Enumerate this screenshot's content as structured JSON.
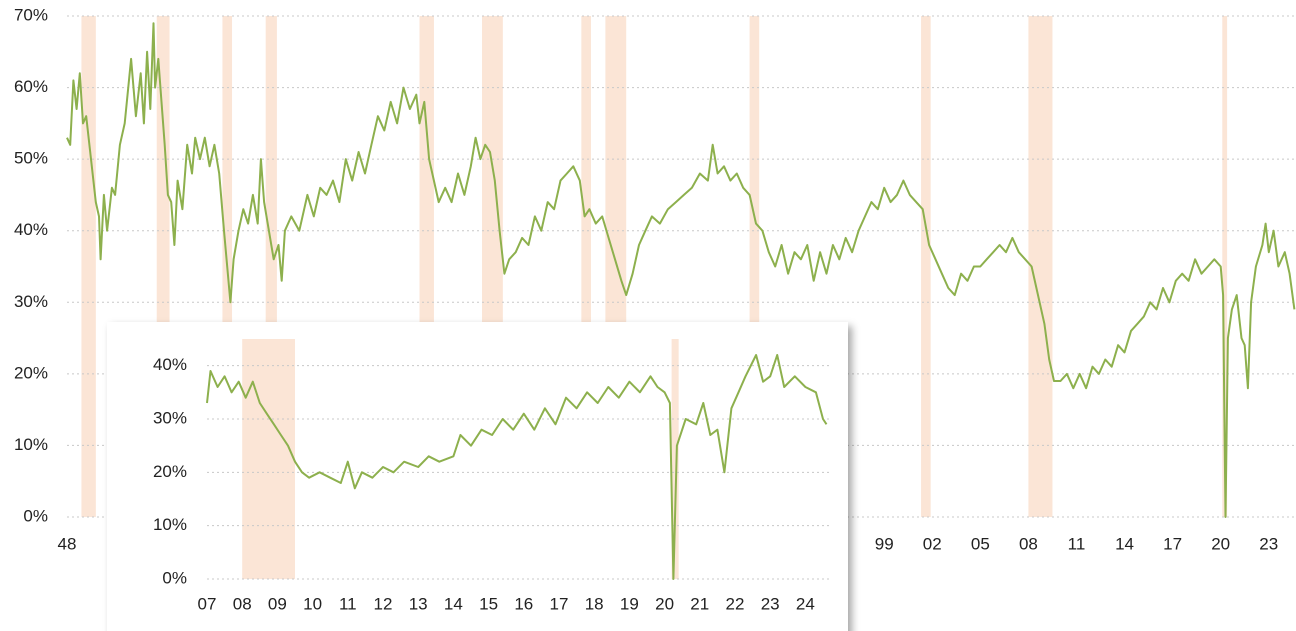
{
  "chart_data": [
    {
      "type": "line",
      "ylim": [
        0,
        70
      ],
      "yticks": [
        {
          "value": 0,
          "label": "0%"
        },
        {
          "value": 10,
          "label": "10%"
        },
        {
          "value": 20,
          "label": "20%"
        },
        {
          "value": 30,
          "label": "30%"
        },
        {
          "value": 40,
          "label": "40%"
        },
        {
          "value": 50,
          "label": "50%"
        },
        {
          "value": 60,
          "label": "60%"
        },
        {
          "value": 70,
          "label": "70%"
        }
      ],
      "xlim": [
        1948,
        2024.7
      ],
      "xticks": [
        {
          "value": 1948,
          "label": "48"
        },
        {
          "value": 1999,
          "label": "99"
        },
        {
          "value": 2002,
          "label": "02"
        },
        {
          "value": 2005,
          "label": "05"
        },
        {
          "value": 2008,
          "label": "08"
        },
        {
          "value": 2011,
          "label": "11"
        },
        {
          "value": 2014,
          "label": "14"
        },
        {
          "value": 2017,
          "label": "17"
        },
        {
          "value": 2020,
          "label": "20"
        },
        {
          "value": 2023,
          "label": "23"
        }
      ],
      "grid": true,
      "shade_color": "#fbe5d6",
      "shaded_periods": [
        [
          1948.9,
          1949.8
        ],
        [
          1953.6,
          1954.4
        ],
        [
          1957.7,
          1958.3
        ],
        [
          1960.4,
          1961.1
        ],
        [
          1970.0,
          1970.9
        ],
        [
          1973.9,
          1975.2
        ],
        [
          1980.1,
          1980.7
        ],
        [
          1981.6,
          1982.9
        ],
        [
          1990.6,
          1991.2
        ],
        [
          2001.3,
          2001.9
        ],
        [
          2008.0,
          2009.5
        ],
        [
          2020.1,
          2020.4
        ]
      ],
      "series": [
        {
          "color": "#8db04d",
          "x": [
            1948.0,
            1948.2,
            1948.4,
            1948.6,
            1948.8,
            1949.0,
            1949.2,
            1949.5,
            1949.8,
            1950.0,
            1950.1,
            1950.3,
            1950.5,
            1950.8,
            1951.0,
            1951.3,
            1951.6,
            1952.0,
            1952.3,
            1952.6,
            1952.8,
            1953.0,
            1953.2,
            1953.4,
            1953.5,
            1953.7,
            1953.9,
            1954.1,
            1954.3,
            1954.5,
            1954.7,
            1954.9,
            1955.2,
            1955.5,
            1955.8,
            1956.0,
            1956.3,
            1956.6,
            1956.9,
            1957.2,
            1957.5,
            1957.8,
            1958.0,
            1958.2,
            1958.4,
            1958.7,
            1959.0,
            1959.3,
            1959.6,
            1959.9,
            1960.1,
            1960.3,
            1960.6,
            1960.9,
            1961.2,
            1961.4,
            1961.6,
            1962.0,
            1962.5,
            1963.0,
            1963.4,
            1963.8,
            1964.2,
            1964.6,
            1965.0,
            1965.4,
            1965.8,
            1966.2,
            1966.6,
            1967.0,
            1967.4,
            1967.8,
            1968.2,
            1968.6,
            1969.0,
            1969.4,
            1969.8,
            1970.0,
            1970.3,
            1970.6,
            1970.9,
            1971.2,
            1971.6,
            1972.0,
            1972.4,
            1972.8,
            1973.2,
            1973.5,
            1973.8,
            1974.1,
            1974.4,
            1974.7,
            1975.0,
            1975.3,
            1975.6,
            1976.0,
            1976.4,
            1976.8,
            1977.2,
            1977.6,
            1978.0,
            1978.4,
            1978.8,
            1979.2,
            1979.6,
            1980.0,
            1980.3,
            1980.6,
            1981.0,
            1981.4,
            1981.8,
            1982.2,
            1982.6,
            1982.9,
            1983.3,
            1983.7,
            1984.1,
            1984.5,
            1985.0,
            1985.5,
            1986.0,
            1986.5,
            1987.0,
            1987.5,
            1988.0,
            1988.3,
            1988.6,
            1989.0,
            1989.4,
            1989.8,
            1990.2,
            1990.6,
            1991.0,
            1991.4,
            1991.8,
            1992.2,
            1992.6,
            1993.0,
            1993.4,
            1993.8,
            1994.2,
            1994.6,
            1995.0,
            1995.4,
            1995.8,
            1996.2,
            1996.6,
            1997.0,
            1997.4,
            1997.8,
            1998.2,
            1998.6,
            1999.0,
            1999.4,
            1999.8,
            2000.2,
            2000.6,
            2001.0,
            2001.4,
            2001.8,
            2002.2,
            2002.6,
            2003.0,
            2003.4,
            2003.8,
            2004.2,
            2004.6,
            2005.0,
            2005.4,
            2005.8,
            2006.2,
            2006.6,
            2007.0,
            2007.4,
            2007.8,
            2008.2,
            2008.6,
            2009.0,
            2009.3,
            2009.6,
            2010.0,
            2010.4,
            2010.8,
            2011.2,
            2011.6,
            2012.0,
            2012.4,
            2012.8,
            2013.2,
            2013.6,
            2014.0,
            2014.4,
            2014.8,
            2015.2,
            2015.6,
            2016.0,
            2016.4,
            2016.8,
            2017.2,
            2017.6,
            2018.0,
            2018.4,
            2018.8,
            2019.2,
            2019.6,
            2020.0,
            2020.15,
            2020.3,
            2020.45,
            2020.7,
            2021.0,
            2021.3,
            2021.5,
            2021.7,
            2021.9,
            2022.2,
            2022.6,
            2022.8,
            2023.0,
            2023.3,
            2023.6,
            2024.0,
            2024.3,
            2024.6
          ],
          "values": [
            53,
            52,
            61,
            57,
            62,
            55,
            56,
            50,
            44,
            42,
            36,
            45,
            40,
            46,
            45,
            52,
            55,
            64,
            56,
            62,
            55,
            65,
            57,
            69,
            60,
            64,
            58,
            52,
            45,
            44,
            38,
            47,
            43,
            52,
            48,
            53,
            50,
            53,
            49,
            52,
            48,
            40,
            35,
            30,
            36,
            40,
            43,
            41,
            45,
            41,
            50,
            44,
            40,
            36,
            38,
            33,
            40,
            42,
            40,
            45,
            42,
            46,
            45,
            47,
            44,
            50,
            47,
            51,
            48,
            52,
            56,
            54,
            58,
            55,
            60,
            57,
            59,
            55,
            58,
            50,
            47,
            44,
            46,
            44,
            48,
            45,
            49,
            53,
            50,
            52,
            51,
            47,
            40,
            34,
            36,
            37,
            39,
            38,
            42,
            40,
            44,
            43,
            47,
            48,
            49,
            47,
            42,
            43,
            41,
            42,
            39,
            36,
            33,
            31,
            34,
            38,
            40,
            42,
            41,
            43,
            44,
            45,
            46,
            48,
            47,
            52,
            48,
            49,
            47,
            48,
            46,
            45,
            41,
            40,
            37,
            35,
            38,
            34,
            37,
            36,
            38,
            33,
            37,
            34,
            38,
            36,
            39,
            37,
            40,
            42,
            44,
            43,
            46,
            44,
            45,
            47,
            45,
            44,
            43,
            38,
            36,
            34,
            32,
            31,
            34,
            33,
            35,
            35,
            36,
            37,
            38,
            37,
            39,
            37,
            36,
            35,
            31,
            27,
            22,
            19,
            19,
            20,
            18,
            20,
            18,
            21,
            20,
            22,
            21,
            24,
            23,
            26,
            27,
            28,
            30,
            29,
            32,
            30,
            33,
            34,
            33,
            36,
            34,
            35,
            36,
            35,
            31,
            0,
            25,
            29,
            31,
            25,
            24,
            18,
            30,
            35,
            38,
            41,
            37,
            40,
            35,
            37,
            34,
            29
          ]
        }
      ]
    },
    {
      "type": "line",
      "ylim": [
        0,
        45
      ],
      "yticks": [
        {
          "value": 0,
          "label": "0%"
        },
        {
          "value": 10,
          "label": "10%"
        },
        {
          "value": 20,
          "label": "20%"
        },
        {
          "value": 30,
          "label": "30%"
        },
        {
          "value": 40,
          "label": "40%"
        }
      ],
      "xlim": [
        2007,
        2024.7
      ],
      "xticks": [
        {
          "value": 2007,
          "label": "07"
        },
        {
          "value": 2008,
          "label": "08"
        },
        {
          "value": 2009,
          "label": "09"
        },
        {
          "value": 2010,
          "label": "10"
        },
        {
          "value": 2011,
          "label": "11"
        },
        {
          "value": 2012,
          "label": "12"
        },
        {
          "value": 2013,
          "label": "13"
        },
        {
          "value": 2014,
          "label": "14"
        },
        {
          "value": 2015,
          "label": "15"
        },
        {
          "value": 2016,
          "label": "16"
        },
        {
          "value": 2017,
          "label": "17"
        },
        {
          "value": 2018,
          "label": "18"
        },
        {
          "value": 2019,
          "label": "19"
        },
        {
          "value": 2020,
          "label": "20"
        },
        {
          "value": 2021,
          "label": "21"
        },
        {
          "value": 2022,
          "label": "22"
        },
        {
          "value": 2023,
          "label": "23"
        },
        {
          "value": 2024,
          "label": "24"
        }
      ],
      "grid": true,
      "shade_color": "#fbe5d6",
      "shaded_periods": [
        [
          2008.0,
          2009.5
        ],
        [
          2020.2,
          2020.4
        ]
      ],
      "series": [
        {
          "color": "#8db04d",
          "x": [
            2007.0,
            2007.1,
            2007.3,
            2007.5,
            2007.7,
            2007.9,
            2008.1,
            2008.3,
            2008.5,
            2008.7,
            2008.9,
            2009.1,
            2009.3,
            2009.5,
            2009.7,
            2009.9,
            2010.2,
            2010.5,
            2010.8,
            2011.0,
            2011.2,
            2011.4,
            2011.7,
            2012.0,
            2012.3,
            2012.6,
            2013.0,
            2013.3,
            2013.6,
            2014.0,
            2014.2,
            2014.5,
            2014.8,
            2015.1,
            2015.4,
            2015.7,
            2016.0,
            2016.3,
            2016.6,
            2016.9,
            2017.2,
            2017.5,
            2017.8,
            2018.1,
            2018.4,
            2018.7,
            2019.0,
            2019.3,
            2019.6,
            2019.8,
            2020.0,
            2020.15,
            2020.25,
            2020.35,
            2020.6,
            2020.9,
            2021.1,
            2021.3,
            2021.5,
            2021.7,
            2021.9,
            2022.1,
            2022.3,
            2022.6,
            2022.8,
            2023.0,
            2023.2,
            2023.4,
            2023.7,
            2024.0,
            2024.3,
            2024.5,
            2024.6
          ],
          "values": [
            33,
            39,
            36,
            38,
            35,
            37,
            34,
            37,
            33,
            31,
            29,
            27,
            25,
            22,
            20,
            19,
            20,
            19,
            18,
            22,
            17,
            20,
            19,
            21,
            20,
            22,
            21,
            23,
            22,
            23,
            27,
            25,
            28,
            27,
            30,
            28,
            31,
            28,
            32,
            29,
            34,
            32,
            35,
            33,
            36,
            34,
            37,
            35,
            38,
            36,
            35,
            33,
            0,
            25,
            30,
            29,
            33,
            27,
            28,
            20,
            32,
            35,
            38,
            42,
            37,
            38,
            42,
            36,
            38,
            36,
            35,
            30,
            29
          ]
        }
      ]
    }
  ]
}
